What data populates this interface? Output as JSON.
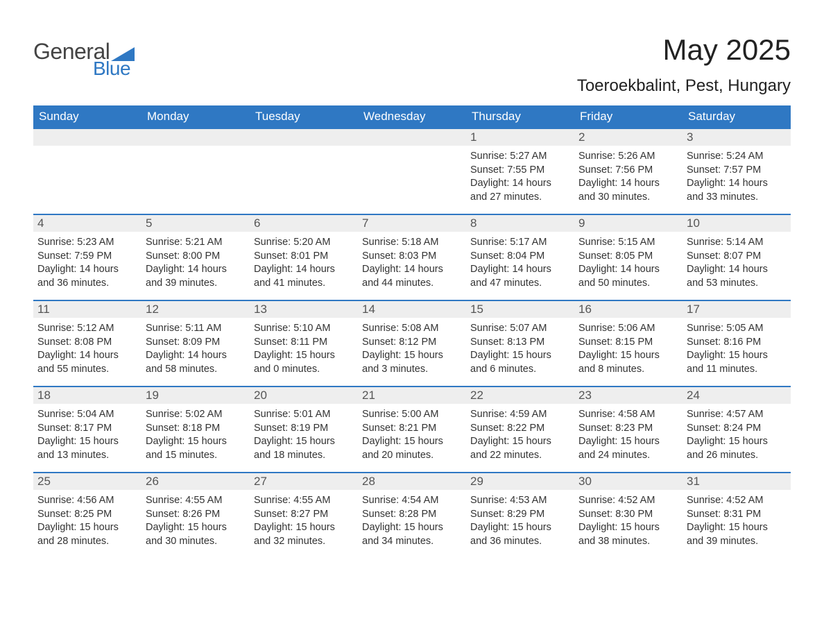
{
  "brand": {
    "word1": "General",
    "word2": "Blue",
    "accent_color": "#2f78c3"
  },
  "title": "May 2025",
  "location": "Toeroekbalint, Pest, Hungary",
  "weekdays": [
    "Sunday",
    "Monday",
    "Tuesday",
    "Wednesday",
    "Thursday",
    "Friday",
    "Saturday"
  ],
  "colors": {
    "header_bg": "#2f78c3",
    "header_text": "#ffffff",
    "daynum_bg": "#eeeeee",
    "daynum_text": "#555555",
    "body_text": "#333333",
    "row_border": "#2f78c3",
    "page_bg": "#ffffff"
  },
  "typography": {
    "title_fontsize": 42,
    "location_fontsize": 24,
    "weekday_fontsize": 17,
    "body_fontsize": 14.5
  },
  "weeks": [
    [
      {
        "empty": true
      },
      {
        "empty": true
      },
      {
        "empty": true
      },
      {
        "empty": true
      },
      {
        "num": "1",
        "sunrise": "Sunrise: 5:27 AM",
        "sunset": "Sunset: 7:55 PM",
        "daylight1": "Daylight: 14 hours",
        "daylight2": "and 27 minutes."
      },
      {
        "num": "2",
        "sunrise": "Sunrise: 5:26 AM",
        "sunset": "Sunset: 7:56 PM",
        "daylight1": "Daylight: 14 hours",
        "daylight2": "and 30 minutes."
      },
      {
        "num": "3",
        "sunrise": "Sunrise: 5:24 AM",
        "sunset": "Sunset: 7:57 PM",
        "daylight1": "Daylight: 14 hours",
        "daylight2": "and 33 minutes."
      }
    ],
    [
      {
        "num": "4",
        "sunrise": "Sunrise: 5:23 AM",
        "sunset": "Sunset: 7:59 PM",
        "daylight1": "Daylight: 14 hours",
        "daylight2": "and 36 minutes."
      },
      {
        "num": "5",
        "sunrise": "Sunrise: 5:21 AM",
        "sunset": "Sunset: 8:00 PM",
        "daylight1": "Daylight: 14 hours",
        "daylight2": "and 39 minutes."
      },
      {
        "num": "6",
        "sunrise": "Sunrise: 5:20 AM",
        "sunset": "Sunset: 8:01 PM",
        "daylight1": "Daylight: 14 hours",
        "daylight2": "and 41 minutes."
      },
      {
        "num": "7",
        "sunrise": "Sunrise: 5:18 AM",
        "sunset": "Sunset: 8:03 PM",
        "daylight1": "Daylight: 14 hours",
        "daylight2": "and 44 minutes."
      },
      {
        "num": "8",
        "sunrise": "Sunrise: 5:17 AM",
        "sunset": "Sunset: 8:04 PM",
        "daylight1": "Daylight: 14 hours",
        "daylight2": "and 47 minutes."
      },
      {
        "num": "9",
        "sunrise": "Sunrise: 5:15 AM",
        "sunset": "Sunset: 8:05 PM",
        "daylight1": "Daylight: 14 hours",
        "daylight2": "and 50 minutes."
      },
      {
        "num": "10",
        "sunrise": "Sunrise: 5:14 AM",
        "sunset": "Sunset: 8:07 PM",
        "daylight1": "Daylight: 14 hours",
        "daylight2": "and 53 minutes."
      }
    ],
    [
      {
        "num": "11",
        "sunrise": "Sunrise: 5:12 AM",
        "sunset": "Sunset: 8:08 PM",
        "daylight1": "Daylight: 14 hours",
        "daylight2": "and 55 minutes."
      },
      {
        "num": "12",
        "sunrise": "Sunrise: 5:11 AM",
        "sunset": "Sunset: 8:09 PM",
        "daylight1": "Daylight: 14 hours",
        "daylight2": "and 58 minutes."
      },
      {
        "num": "13",
        "sunrise": "Sunrise: 5:10 AM",
        "sunset": "Sunset: 8:11 PM",
        "daylight1": "Daylight: 15 hours",
        "daylight2": "and 0 minutes."
      },
      {
        "num": "14",
        "sunrise": "Sunrise: 5:08 AM",
        "sunset": "Sunset: 8:12 PM",
        "daylight1": "Daylight: 15 hours",
        "daylight2": "and 3 minutes."
      },
      {
        "num": "15",
        "sunrise": "Sunrise: 5:07 AM",
        "sunset": "Sunset: 8:13 PM",
        "daylight1": "Daylight: 15 hours",
        "daylight2": "and 6 minutes."
      },
      {
        "num": "16",
        "sunrise": "Sunrise: 5:06 AM",
        "sunset": "Sunset: 8:15 PM",
        "daylight1": "Daylight: 15 hours",
        "daylight2": "and 8 minutes."
      },
      {
        "num": "17",
        "sunrise": "Sunrise: 5:05 AM",
        "sunset": "Sunset: 8:16 PM",
        "daylight1": "Daylight: 15 hours",
        "daylight2": "and 11 minutes."
      }
    ],
    [
      {
        "num": "18",
        "sunrise": "Sunrise: 5:04 AM",
        "sunset": "Sunset: 8:17 PM",
        "daylight1": "Daylight: 15 hours",
        "daylight2": "and 13 minutes."
      },
      {
        "num": "19",
        "sunrise": "Sunrise: 5:02 AM",
        "sunset": "Sunset: 8:18 PM",
        "daylight1": "Daylight: 15 hours",
        "daylight2": "and 15 minutes."
      },
      {
        "num": "20",
        "sunrise": "Sunrise: 5:01 AM",
        "sunset": "Sunset: 8:19 PM",
        "daylight1": "Daylight: 15 hours",
        "daylight2": "and 18 minutes."
      },
      {
        "num": "21",
        "sunrise": "Sunrise: 5:00 AM",
        "sunset": "Sunset: 8:21 PM",
        "daylight1": "Daylight: 15 hours",
        "daylight2": "and 20 minutes."
      },
      {
        "num": "22",
        "sunrise": "Sunrise: 4:59 AM",
        "sunset": "Sunset: 8:22 PM",
        "daylight1": "Daylight: 15 hours",
        "daylight2": "and 22 minutes."
      },
      {
        "num": "23",
        "sunrise": "Sunrise: 4:58 AM",
        "sunset": "Sunset: 8:23 PM",
        "daylight1": "Daylight: 15 hours",
        "daylight2": "and 24 minutes."
      },
      {
        "num": "24",
        "sunrise": "Sunrise: 4:57 AM",
        "sunset": "Sunset: 8:24 PM",
        "daylight1": "Daylight: 15 hours",
        "daylight2": "and 26 minutes."
      }
    ],
    [
      {
        "num": "25",
        "sunrise": "Sunrise: 4:56 AM",
        "sunset": "Sunset: 8:25 PM",
        "daylight1": "Daylight: 15 hours",
        "daylight2": "and 28 minutes."
      },
      {
        "num": "26",
        "sunrise": "Sunrise: 4:55 AM",
        "sunset": "Sunset: 8:26 PM",
        "daylight1": "Daylight: 15 hours",
        "daylight2": "and 30 minutes."
      },
      {
        "num": "27",
        "sunrise": "Sunrise: 4:55 AM",
        "sunset": "Sunset: 8:27 PM",
        "daylight1": "Daylight: 15 hours",
        "daylight2": "and 32 minutes."
      },
      {
        "num": "28",
        "sunrise": "Sunrise: 4:54 AM",
        "sunset": "Sunset: 8:28 PM",
        "daylight1": "Daylight: 15 hours",
        "daylight2": "and 34 minutes."
      },
      {
        "num": "29",
        "sunrise": "Sunrise: 4:53 AM",
        "sunset": "Sunset: 8:29 PM",
        "daylight1": "Daylight: 15 hours",
        "daylight2": "and 36 minutes."
      },
      {
        "num": "30",
        "sunrise": "Sunrise: 4:52 AM",
        "sunset": "Sunset: 8:30 PM",
        "daylight1": "Daylight: 15 hours",
        "daylight2": "and 38 minutes."
      },
      {
        "num": "31",
        "sunrise": "Sunrise: 4:52 AM",
        "sunset": "Sunset: 8:31 PM",
        "daylight1": "Daylight: 15 hours",
        "daylight2": "and 39 minutes."
      }
    ]
  ]
}
